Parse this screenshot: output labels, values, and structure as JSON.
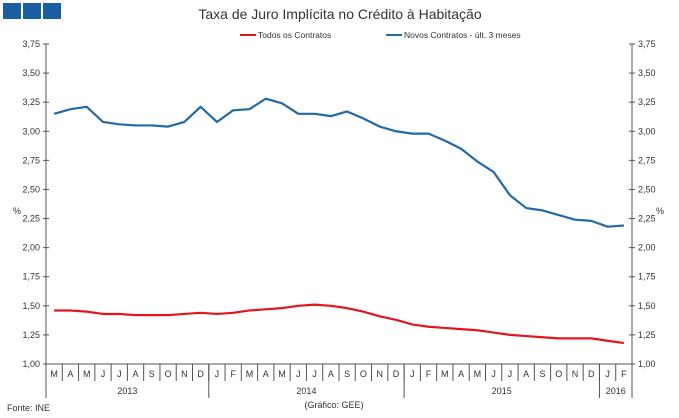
{
  "chart_data": {
    "type": "line",
    "title": "Taxa de Juro Implícita no Crédito à Habitação",
    "ylabel": "%",
    "ylim": [
      1.0,
      3.75
    ],
    "yticks": [
      "1,00",
      "1,25",
      "1,50",
      "1,75",
      "2,00",
      "2,25",
      "2,50",
      "2,75",
      "3,00",
      "3,25",
      "3,50",
      "3,75"
    ],
    "ytick_values": [
      1.0,
      1.25,
      1.5,
      1.75,
      2.0,
      2.25,
      2.5,
      2.75,
      3.0,
      3.25,
      3.5,
      3.75
    ],
    "months": [
      "M",
      "A",
      "M",
      "J",
      "J",
      "A",
      "S",
      "O",
      "N",
      "D",
      "J",
      "F",
      "M",
      "A",
      "M",
      "J",
      "J",
      "A",
      "S",
      "O",
      "N",
      "D",
      "J",
      "F",
      "M",
      "A",
      "M",
      "J",
      "J",
      "A",
      "S",
      "O",
      "N",
      "D",
      "J",
      "F"
    ],
    "years": [
      {
        "label": "2013",
        "count": 10
      },
      {
        "label": "2014",
        "count": 12
      },
      {
        "label": "2015",
        "count": 12
      },
      {
        "label": "2016",
        "count": 2
      }
    ],
    "legend_position": "top-center",
    "series": [
      {
        "name": "Todos os Contratos",
        "color": "#e3161e",
        "values": [
          1.46,
          1.46,
          1.45,
          1.43,
          1.43,
          1.42,
          1.42,
          1.42,
          1.43,
          1.44,
          1.43,
          1.44,
          1.46,
          1.47,
          1.48,
          1.5,
          1.51,
          1.5,
          1.48,
          1.45,
          1.41,
          1.38,
          1.34,
          1.32,
          1.31,
          1.3,
          1.29,
          1.27,
          1.25,
          1.24,
          1.23,
          1.22,
          1.22,
          1.22,
          1.2,
          1.18
        ]
      },
      {
        "name": "Novos Contratos - últ. 3 meses",
        "color": "#1f6aa8",
        "values": [
          3.15,
          3.19,
          3.21,
          3.08,
          3.06,
          3.05,
          3.05,
          3.04,
          3.08,
          3.21,
          3.08,
          3.18,
          3.19,
          3.28,
          3.24,
          3.15,
          3.15,
          3.13,
          3.17,
          3.11,
          3.04,
          3.0,
          2.98,
          2.98,
          2.92,
          2.85,
          2.74,
          2.65,
          2.45,
          2.34,
          2.32,
          2.28,
          2.24,
          2.23,
          2.18,
          2.19
        ]
      }
    ],
    "source": "Fonte: INE",
    "credit": "(Gráfico: GEE)"
  }
}
